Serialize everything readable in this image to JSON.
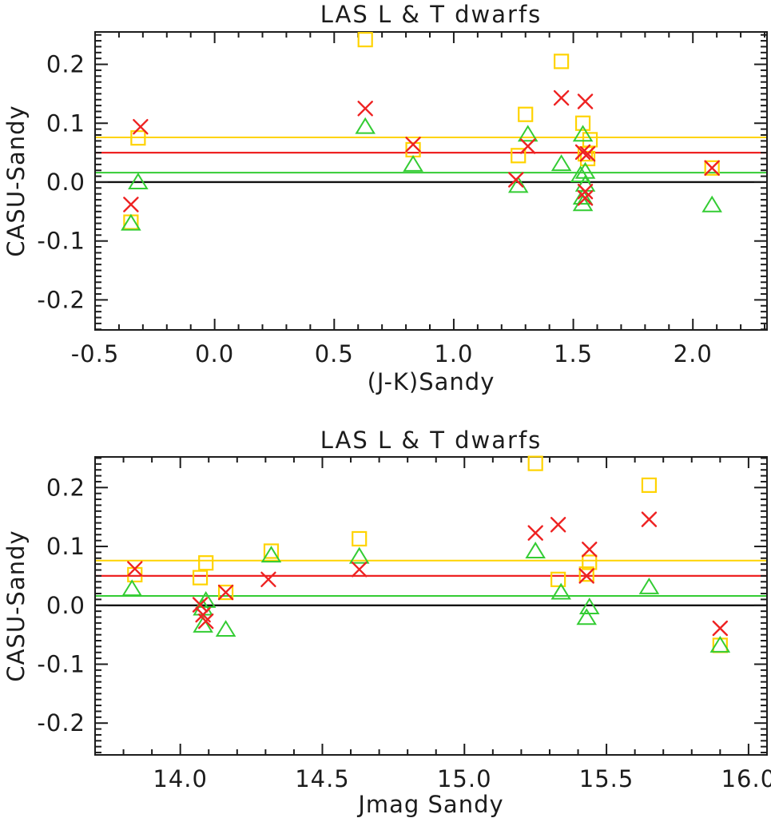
{
  "figure": {
    "background": "#ffffff",
    "axis_color": "#1c1c1c",
    "marker_colors": {
      "square": "#ffd300",
      "triangle": "#33cc33",
      "cross": "#ee2222"
    }
  },
  "chart_data": [
    {
      "type": "scatter",
      "title": "LAS L & T dwarfs",
      "xlabel": "(J-K)Sandy",
      "ylabel": "CASU-Sandy",
      "xlim": [
        -0.5,
        2.31
      ],
      "ylim": [
        -0.251,
        0.255
      ],
      "x_ticks": [
        {
          "v": -0.5,
          "label": "-0.5"
        },
        {
          "v": 0.0,
          "label": "0.0"
        },
        {
          "v": 0.5,
          "label": "0.5"
        },
        {
          "v": 1.0,
          "label": "1.0"
        },
        {
          "v": 1.5,
          "label": "1.5"
        },
        {
          "v": 2.0,
          "label": "2.0"
        }
      ],
      "x_minor_step": 0.1,
      "y_ticks": [
        {
          "v": -0.2,
          "label": "-0.2"
        },
        {
          "v": -0.1,
          "label": "-0.1"
        },
        {
          "v": 0.0,
          "label": "0.0"
        },
        {
          "v": 0.1,
          "label": "0.1"
        },
        {
          "v": 0.2,
          "label": "0.2"
        }
      ],
      "y_minor_step": 0.01,
      "grid": false,
      "legend": "none",
      "hlines": [
        {
          "y": 0.076,
          "color": "#ffd300",
          "width": 2
        },
        {
          "y": 0.05,
          "color": "#ee2222",
          "width": 2.2
        },
        {
          "y": 0.016,
          "color": "#33cc33",
          "width": 2
        },
        {
          "y": 0.0,
          "color": "#111111",
          "width": 2.4
        }
      ],
      "series": [
        {
          "id": "squares",
          "marker": "square",
          "color": "#ffd300",
          "points": [
            [
              -0.32,
              0.075
            ],
            [
              -0.35,
              -0.068
            ],
            [
              0.63,
              0.242
            ],
            [
              0.83,
              0.055
            ],
            [
              1.27,
              0.045
            ],
            [
              1.3,
              0.115
            ],
            [
              1.45,
              0.205
            ],
            [
              1.54,
              0.1
            ],
            [
              1.57,
              0.072
            ],
            [
              1.55,
              0.048
            ],
            [
              1.56,
              0.04
            ],
            [
              2.08,
              0.024
            ]
          ]
        },
        {
          "id": "triangles",
          "marker": "triangle",
          "color": "#33cc33",
          "points": [
            [
              -0.32,
              0.0
            ],
            [
              -0.35,
              -0.07
            ],
            [
              0.63,
              0.094
            ],
            [
              0.83,
              0.03
            ],
            [
              1.27,
              -0.006
            ],
            [
              1.31,
              0.081
            ],
            [
              1.45,
              0.031
            ],
            [
              1.54,
              0.081
            ],
            [
              1.55,
              0.018
            ],
            [
              1.53,
              0.012
            ],
            [
              1.55,
              -0.004
            ],
            [
              1.54,
              -0.026
            ],
            [
              1.54,
              -0.037
            ],
            [
              2.08,
              -0.039
            ]
          ]
        },
        {
          "id": "crosses",
          "marker": "x",
          "color": "#ee2222",
          "points": [
            [
              -0.31,
              0.094
            ],
            [
              -0.35,
              -0.038
            ],
            [
              0.63,
              0.125
            ],
            [
              0.83,
              0.064
            ],
            [
              1.26,
              0.004
            ],
            [
              1.31,
              0.061
            ],
            [
              1.45,
              0.143
            ],
            [
              1.55,
              0.137
            ],
            [
              1.54,
              0.051
            ],
            [
              1.56,
              0.048
            ],
            [
              1.55,
              -0.016
            ],
            [
              1.55,
              -0.027
            ],
            [
              2.08,
              0.024
            ]
          ]
        }
      ]
    },
    {
      "type": "scatter",
      "title": "LAS L & T dwarfs",
      "xlabel": "Jmag Sandy",
      "ylabel": "CASU-Sandy",
      "xlim": [
        13.7,
        16.065
      ],
      "ylim": [
        -0.254,
        0.252
      ],
      "x_ticks": [
        {
          "v": 14.0,
          "label": "14.0"
        },
        {
          "v": 14.5,
          "label": "14.5"
        },
        {
          "v": 15.0,
          "label": "15.0"
        },
        {
          "v": 15.5,
          "label": "15.5"
        },
        {
          "v": 16.0,
          "label": "16.0"
        }
      ],
      "x_minor_step": 0.1,
      "y_ticks": [
        {
          "v": -0.2,
          "label": "-0.2"
        },
        {
          "v": -0.1,
          "label": "-0.1"
        },
        {
          "v": 0.0,
          "label": "0.0"
        },
        {
          "v": 0.1,
          "label": "0.1"
        },
        {
          "v": 0.2,
          "label": "0.2"
        }
      ],
      "y_minor_step": 0.01,
      "grid": false,
      "legend": "none",
      "hlines": [
        {
          "y": 0.076,
          "color": "#ffd300",
          "width": 2
        },
        {
          "y": 0.05,
          "color": "#ee2222",
          "width": 2.2
        },
        {
          "y": 0.016,
          "color": "#33cc33",
          "width": 2
        },
        {
          "y": 0.0,
          "color": "#111111",
          "width": 2.4
        }
      ],
      "series": [
        {
          "id": "squares",
          "marker": "square",
          "color": "#ffd300",
          "points": [
            [
              13.84,
              0.052
            ],
            [
              14.07,
              0.047
            ],
            [
              14.09,
              0.072
            ],
            [
              14.16,
              0.022
            ],
            [
              14.32,
              0.092
            ],
            [
              14.63,
              0.113
            ],
            [
              15.25,
              0.241
            ],
            [
              15.33,
              0.044
            ],
            [
              15.43,
              0.053
            ],
            [
              15.44,
              0.073
            ],
            [
              15.65,
              0.204
            ],
            [
              15.9,
              -0.068
            ]
          ]
        },
        {
          "id": "triangles",
          "marker": "triangle",
          "color": "#33cc33",
          "points": [
            [
              13.83,
              0.028
            ],
            [
              14.09,
              0.008
            ],
            [
              14.08,
              -0.005
            ],
            [
              14.08,
              -0.034
            ],
            [
              14.16,
              -0.041
            ],
            [
              14.32,
              0.085
            ],
            [
              14.63,
              0.083
            ],
            [
              15.25,
              0.092
            ],
            [
              15.34,
              0.022
            ],
            [
              15.44,
              -0.003
            ],
            [
              15.43,
              -0.021
            ],
            [
              15.65,
              0.031
            ],
            [
              15.9,
              -0.068
            ]
          ]
        },
        {
          "id": "crosses",
          "marker": "x",
          "color": "#ee2222",
          "points": [
            [
              13.84,
              0.062
            ],
            [
              14.07,
              0.001
            ],
            [
              14.08,
              -0.016
            ],
            [
              14.09,
              -0.027
            ],
            [
              14.16,
              0.022
            ],
            [
              14.31,
              0.044
            ],
            [
              14.63,
              0.061
            ],
            [
              15.25,
              0.123
            ],
            [
              15.33,
              0.137
            ],
            [
              15.43,
              0.05
            ],
            [
              15.44,
              0.095
            ],
            [
              15.65,
              0.146
            ],
            [
              15.9,
              -0.039
            ]
          ]
        }
      ]
    }
  ]
}
